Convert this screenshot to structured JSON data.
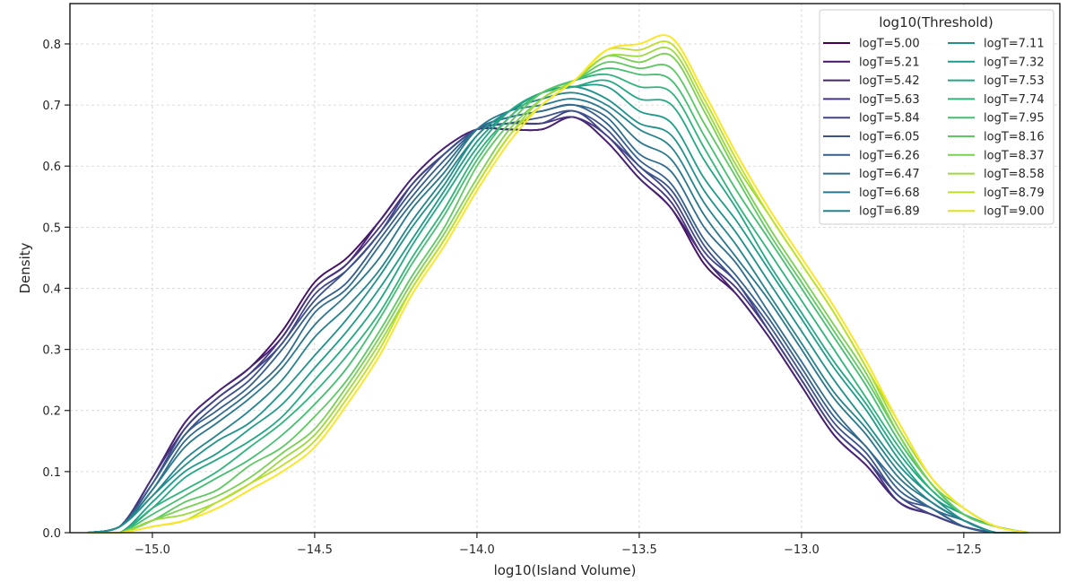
{
  "chart_data": {
    "type": "line",
    "title": "",
    "xlabel": "log10(Island Volume)",
    "ylabel": "Density",
    "xlim": [
      -15.254,
      -12.204
    ],
    "ylim": [
      0,
      0.866
    ],
    "grid": true,
    "x_ticks": [
      -15.0,
      -14.5,
      -14.0,
      -13.5,
      -13.0,
      -12.5
    ],
    "x_tick_labels": [
      "−15.0",
      "−14.5",
      "−14.0",
      "−13.5",
      "−13.0",
      "−12.5"
    ],
    "y_ticks": [
      0,
      0.1,
      0.2,
      0.3,
      0.4,
      0.5,
      0.6,
      0.7,
      0.8
    ],
    "y_tick_labels": [
      "0.0",
      "0.1",
      "0.2",
      "0.3",
      "0.4",
      "0.5",
      "0.6",
      "0.7",
      "0.8"
    ],
    "legend": {
      "title": "log10(Threshold)",
      "placement": "top-right",
      "columns": 2
    },
    "x": [
      -15.2,
      -15.1,
      -15.0,
      -14.9,
      -14.8,
      -14.7,
      -14.6,
      -14.5,
      -14.4,
      -14.3,
      -14.2,
      -14.1,
      -14.0,
      -13.9,
      -13.8,
      -13.7,
      -13.6,
      -13.5,
      -13.4,
      -13.3,
      -13.2,
      -13.1,
      -13.0,
      -12.9,
      -12.8,
      -12.7,
      -12.6,
      -12.5,
      -12.4,
      -12.3
    ],
    "series": [
      {
        "name": "logT=5.00",
        "color": "#440154",
        "values": [
          0,
          0.01,
          0.09,
          0.18,
          0.23,
          0.27,
          0.33,
          0.41,
          0.45,
          0.51,
          0.58,
          0.63,
          0.66,
          0.66,
          0.66,
          0.68,
          0.64,
          0.58,
          0.53,
          0.44,
          0.39,
          0.32,
          0.24,
          0.16,
          0.11,
          0.05,
          0.03,
          0.01,
          0,
          0
        ]
      },
      {
        "name": "logT=5.21",
        "color": "#471365",
        "values": [
          0,
          0.01,
          0.09,
          0.18,
          0.23,
          0.27,
          0.33,
          0.41,
          0.45,
          0.51,
          0.58,
          0.63,
          0.66,
          0.66,
          0.66,
          0.68,
          0.64,
          0.58,
          0.53,
          0.44,
          0.39,
          0.32,
          0.24,
          0.16,
          0.11,
          0.05,
          0.03,
          0.01,
          0,
          0
        ]
      },
      {
        "name": "logT=5.42",
        "color": "#482475",
        "values": [
          0,
          0.01,
          0.09,
          0.18,
          0.23,
          0.27,
          0.32,
          0.4,
          0.44,
          0.51,
          0.58,
          0.63,
          0.66,
          0.66,
          0.66,
          0.68,
          0.64,
          0.58,
          0.53,
          0.45,
          0.39,
          0.32,
          0.24,
          0.16,
          0.11,
          0.05,
          0.03,
          0.01,
          0,
          0
        ]
      },
      {
        "name": "logT=5.63",
        "color": "#463480",
        "values": [
          0,
          0.01,
          0.09,
          0.17,
          0.22,
          0.26,
          0.32,
          0.4,
          0.44,
          0.5,
          0.57,
          0.62,
          0.66,
          0.67,
          0.67,
          0.68,
          0.65,
          0.59,
          0.54,
          0.45,
          0.4,
          0.33,
          0.25,
          0.17,
          0.12,
          0.05,
          0.03,
          0.01,
          0,
          0
        ]
      },
      {
        "name": "logT=5.84",
        "color": "#414487",
        "values": [
          0,
          0.01,
          0.08,
          0.17,
          0.22,
          0.26,
          0.31,
          0.39,
          0.43,
          0.49,
          0.57,
          0.62,
          0.66,
          0.67,
          0.67,
          0.69,
          0.65,
          0.6,
          0.55,
          0.46,
          0.41,
          0.33,
          0.25,
          0.17,
          0.12,
          0.06,
          0.03,
          0.01,
          0,
          0
        ]
      },
      {
        "name": "logT=6.05",
        "color": "#3b528b",
        "values": [
          0,
          0.01,
          0.08,
          0.16,
          0.21,
          0.25,
          0.31,
          0.38,
          0.43,
          0.49,
          0.56,
          0.62,
          0.66,
          0.67,
          0.68,
          0.69,
          0.66,
          0.6,
          0.56,
          0.47,
          0.41,
          0.34,
          0.26,
          0.18,
          0.13,
          0.06,
          0.04,
          0.01,
          0,
          0
        ]
      },
      {
        "name": "logT=6.26",
        "color": "#355f8d",
        "values": [
          0,
          0.01,
          0.08,
          0.16,
          0.2,
          0.24,
          0.3,
          0.37,
          0.41,
          0.48,
          0.55,
          0.61,
          0.66,
          0.68,
          0.69,
          0.7,
          0.67,
          0.61,
          0.57,
          0.48,
          0.42,
          0.35,
          0.27,
          0.19,
          0.14,
          0.07,
          0.04,
          0.01,
          0,
          0
        ]
      },
      {
        "name": "logT=6.47",
        "color": "#2f6c8e",
        "values": [
          0,
          0.01,
          0.07,
          0.15,
          0.19,
          0.23,
          0.28,
          0.36,
          0.4,
          0.47,
          0.54,
          0.6,
          0.66,
          0.68,
          0.69,
          0.7,
          0.68,
          0.62,
          0.59,
          0.5,
          0.44,
          0.36,
          0.28,
          0.2,
          0.14,
          0.08,
          0.04,
          0.02,
          0,
          0
        ]
      },
      {
        "name": "logT=6.68",
        "color": "#2a788e",
        "values": [
          0,
          0.01,
          0.07,
          0.14,
          0.18,
          0.22,
          0.27,
          0.34,
          0.39,
          0.45,
          0.53,
          0.59,
          0.66,
          0.69,
          0.7,
          0.71,
          0.69,
          0.64,
          0.61,
          0.52,
          0.45,
          0.38,
          0.3,
          0.22,
          0.16,
          0.09,
          0.05,
          0.02,
          0,
          0
        ]
      },
      {
        "name": "logT=6.89",
        "color": "#25848e",
        "values": [
          0,
          0.01,
          0.06,
          0.12,
          0.16,
          0.2,
          0.25,
          0.32,
          0.37,
          0.43,
          0.51,
          0.58,
          0.65,
          0.69,
          0.71,
          0.72,
          0.7,
          0.66,
          0.63,
          0.54,
          0.47,
          0.39,
          0.31,
          0.23,
          0.17,
          0.1,
          0.05,
          0.02,
          0,
          0
        ]
      },
      {
        "name": "logT=7.11",
        "color": "#21918c",
        "values": [
          0,
          0.01,
          0.06,
          0.11,
          0.15,
          0.18,
          0.23,
          0.29,
          0.35,
          0.42,
          0.5,
          0.57,
          0.65,
          0.69,
          0.72,
          0.73,
          0.71,
          0.67,
          0.65,
          0.56,
          0.49,
          0.41,
          0.33,
          0.25,
          0.18,
          0.11,
          0.06,
          0.02,
          0,
          0
        ]
      },
      {
        "name": "logT=7.32",
        "color": "#1e9c89",
        "values": [
          0,
          0,
          0.05,
          0.1,
          0.13,
          0.17,
          0.21,
          0.27,
          0.33,
          0.4,
          0.48,
          0.56,
          0.64,
          0.69,
          0.72,
          0.73,
          0.73,
          0.69,
          0.67,
          0.58,
          0.51,
          0.43,
          0.35,
          0.27,
          0.2,
          0.12,
          0.06,
          0.03,
          0.01,
          0
        ]
      },
      {
        "name": "logT=7.53",
        "color": "#22a884",
        "values": [
          0,
          0,
          0.04,
          0.09,
          0.12,
          0.15,
          0.19,
          0.25,
          0.31,
          0.38,
          0.47,
          0.55,
          0.63,
          0.69,
          0.72,
          0.73,
          0.74,
          0.71,
          0.7,
          0.61,
          0.53,
          0.44,
          0.36,
          0.28,
          0.21,
          0.13,
          0.07,
          0.03,
          0.01,
          0
        ]
      },
      {
        "name": "logT=7.74",
        "color": "#2fb47c",
        "values": [
          0,
          0,
          0.04,
          0.07,
          0.1,
          0.14,
          0.18,
          0.23,
          0.29,
          0.36,
          0.45,
          0.53,
          0.62,
          0.68,
          0.72,
          0.74,
          0.75,
          0.73,
          0.72,
          0.63,
          0.54,
          0.46,
          0.38,
          0.3,
          0.22,
          0.14,
          0.07,
          0.03,
          0.01,
          0
        ]
      },
      {
        "name": "logT=7.95",
        "color": "#44bf70",
        "values": [
          0,
          0,
          0.03,
          0.06,
          0.09,
          0.12,
          0.16,
          0.21,
          0.27,
          0.35,
          0.44,
          0.52,
          0.61,
          0.68,
          0.72,
          0.74,
          0.76,
          0.75,
          0.74,
          0.65,
          0.56,
          0.48,
          0.4,
          0.32,
          0.24,
          0.15,
          0.08,
          0.03,
          0.01,
          0
        ]
      },
      {
        "name": "logT=8.16",
        "color": "#5ec962",
        "values": [
          0,
          0,
          0.02,
          0.05,
          0.07,
          0.11,
          0.14,
          0.19,
          0.25,
          0.33,
          0.42,
          0.5,
          0.6,
          0.67,
          0.72,
          0.74,
          0.77,
          0.76,
          0.76,
          0.67,
          0.58,
          0.49,
          0.41,
          0.33,
          0.25,
          0.16,
          0.08,
          0.03,
          0.01,
          0
        ]
      },
      {
        "name": "logT=8.37",
        "color": "#7ad151",
        "values": [
          0,
          0,
          0.02,
          0.04,
          0.06,
          0.09,
          0.13,
          0.17,
          0.24,
          0.32,
          0.41,
          0.49,
          0.58,
          0.66,
          0.71,
          0.74,
          0.78,
          0.77,
          0.78,
          0.69,
          0.59,
          0.5,
          0.42,
          0.34,
          0.26,
          0.16,
          0.08,
          0.04,
          0.01,
          0
        ]
      },
      {
        "name": "logT=8.58",
        "color": "#9bd93c",
        "values": [
          0,
          0,
          0.02,
          0.03,
          0.05,
          0.08,
          0.12,
          0.16,
          0.23,
          0.31,
          0.4,
          0.48,
          0.57,
          0.65,
          0.71,
          0.74,
          0.78,
          0.78,
          0.79,
          0.7,
          0.6,
          0.52,
          0.44,
          0.36,
          0.27,
          0.17,
          0.09,
          0.04,
          0.01,
          0
        ]
      },
      {
        "name": "logT=8.79",
        "color": "#bddf26",
        "values": [
          0,
          0,
          0.01,
          0.02,
          0.05,
          0.08,
          0.11,
          0.15,
          0.22,
          0.3,
          0.4,
          0.48,
          0.57,
          0.65,
          0.7,
          0.74,
          0.79,
          0.79,
          0.8,
          0.71,
          0.61,
          0.52,
          0.44,
          0.36,
          0.27,
          0.18,
          0.09,
          0.04,
          0.01,
          0
        ]
      },
      {
        "name": "logT=9.00",
        "color": "#dfe318",
        "values": [
          0,
          0,
          0.01,
          0.02,
          0.04,
          0.07,
          0.1,
          0.14,
          0.21,
          0.29,
          0.39,
          0.47,
          0.56,
          0.64,
          0.7,
          0.74,
          0.79,
          0.8,
          0.81,
          0.72,
          0.62,
          0.53,
          0.45,
          0.37,
          0.28,
          0.18,
          0.09,
          0.04,
          0.01,
          0
        ]
      },
      {
        "name": "logT=9.00",
        "color": "#fde725",
        "values": [
          0,
          0,
          0.01,
          0.02,
          0.04,
          0.07,
          0.1,
          0.14,
          0.21,
          0.29,
          0.39,
          0.47,
          0.56,
          0.64,
          0.7,
          0.74,
          0.79,
          0.8,
          0.81,
          0.72,
          0.62,
          0.53,
          0.45,
          0.37,
          0.28,
          0.18,
          0.09,
          0.04,
          0.01,
          0
        ]
      }
    ]
  }
}
